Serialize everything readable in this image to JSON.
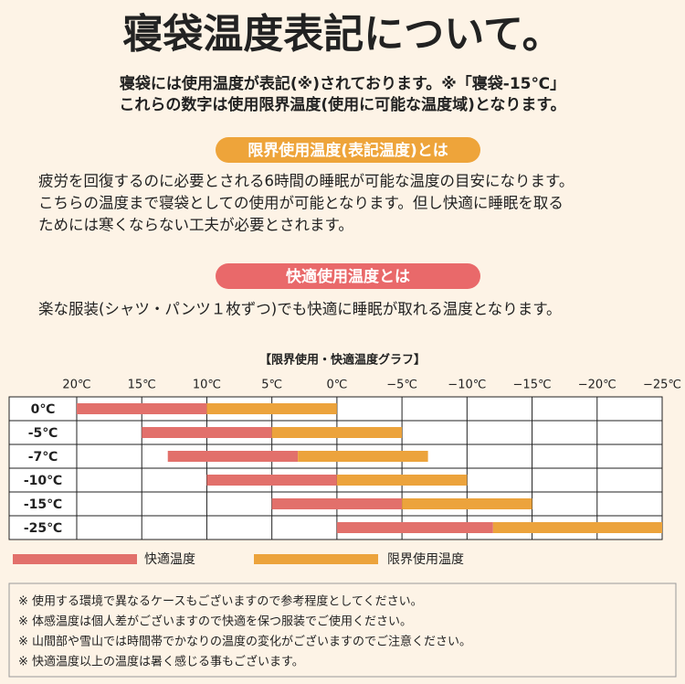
{
  "title": "寝袋温度表記について。",
  "intro": [
    "寝袋には使用温度が表記(※)されております。※「寝袋-15℃」",
    "これらの数字は使用限界温度(使用に可能な温度域)となります。"
  ],
  "sections": [
    {
      "heading": "限界使用温度(表記温度)とは",
      "body": [
        "疲労を回復するのに必要とされる6時間の睡眠が可能な温度の目安になります。",
        "こちらの温度まで寝袋としての使用が可能となります。但し快適に睡眠を取る",
        "ためには寒くならない工夫が必要とされます。"
      ]
    },
    {
      "heading": "快適使用温度とは",
      "body": [
        "楽な服装(シャツ・パンツ１枚ずつ)でも快適に睡眠が取れる温度となります。"
      ]
    }
  ],
  "chart_data": {
    "type": "range-bar",
    "title": "【限界使用・快適温度グラフ】",
    "categories": [
      "0℃",
      "-5℃",
      "-7℃",
      "-10℃",
      "-15℃",
      "-25℃"
    ],
    "xlim": [
      20,
      -25
    ],
    "xticks": [
      {
        "value": 20,
        "label": "20℃"
      },
      {
        "value": 15,
        "label": "15℃"
      },
      {
        "value": 10,
        "label": "10℃"
      },
      {
        "value": 5,
        "label": "5℃"
      },
      {
        "value": 0,
        "label": "0℃"
      },
      {
        "value": -5,
        "label": "−5℃"
      },
      {
        "value": -10,
        "label": "−10℃"
      },
      {
        "value": -15,
        "label": "−15℃"
      },
      {
        "value": -20,
        "label": "−20℃"
      },
      {
        "value": -25,
        "label": "−25℃"
      }
    ],
    "grid": true,
    "series": [
      {
        "name": "快適温度",
        "color": "#e2706b",
        "values": [
          [
            20,
            10
          ],
          [
            15,
            5
          ],
          [
            13,
            3
          ],
          [
            10,
            0
          ],
          [
            5,
            -5
          ],
          [
            0,
            -12
          ]
        ]
      },
      {
        "name": "限界使用温度",
        "color": "#eca33c",
        "values": [
          [
            10,
            0
          ],
          [
            5,
            -5
          ],
          [
            3,
            -7
          ],
          [
            0,
            -10
          ],
          [
            -5,
            -15
          ],
          [
            -12,
            -25
          ]
        ]
      }
    ]
  },
  "notes": [
    "※ 使用する環境で異なるケースもございますので参考程度としてください。",
    "※ 体感温度は個人差がございますので快適を保つ服装でご使用ください。",
    "※ 山間部や雪山では時間帯でかなりの温度の変化がございますのでご注意ください。",
    "※ 快適温度以上の温度は暑く感じる事もございます。"
  ]
}
